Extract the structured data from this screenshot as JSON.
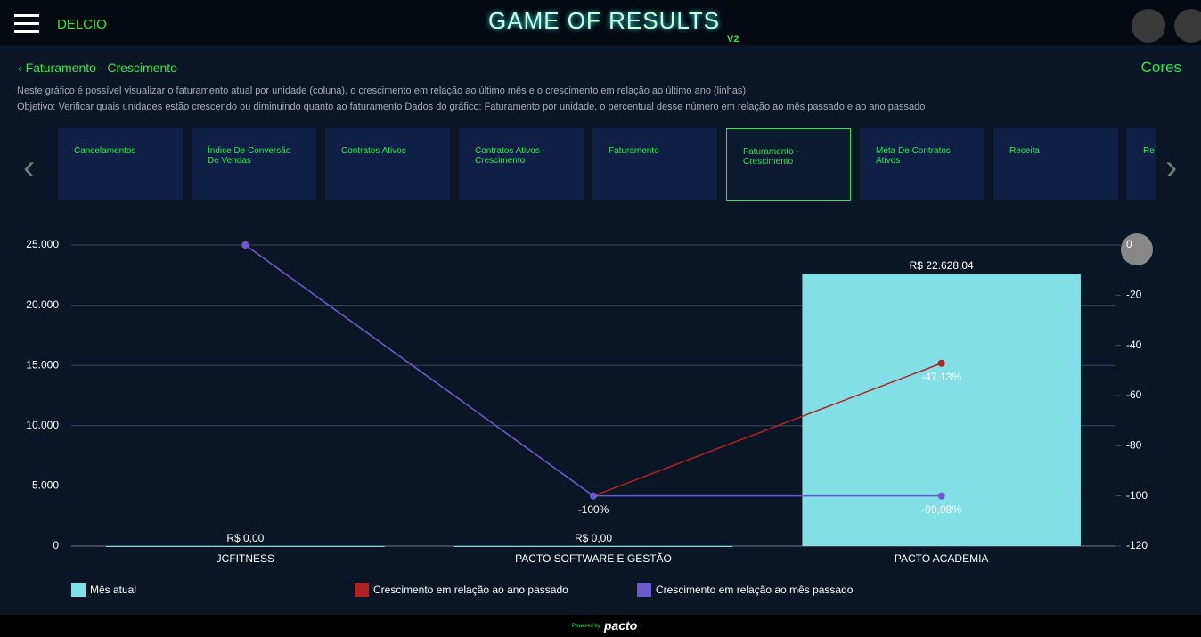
{
  "header": {
    "user": "DELCIO",
    "logo": "GAME OF RESULTS",
    "version": "V2"
  },
  "page": {
    "title": "Faturamento - Crescimento",
    "action": "Cores",
    "description": [
      "Neste gráfico é possível visualizar o faturamento atual por unidade (coluna), o crescimento em relação ao último mês e o crescimento em relação ao último ano (linhas)",
      "Objetivo: Verificar quais unidades estão crescendo ou diminuindo quanto ao faturamento Dados do gráfico: Faturamento por unidade, o percentual desse número em relação ao mês passado e ao ano passado"
    ]
  },
  "tabs": [
    "Cancelamentos",
    "Índice De Conversão De Vendas",
    "Contratos Ativos",
    "Contratos Ativos - Crescimento",
    "Faturamento",
    "Faturamento - Crescimento",
    "Meta De Contratos Ativos",
    "Receita",
    "Re"
  ],
  "chart_data": {
    "type": "bar",
    "categories": [
      "JCFITNESS",
      "PACTO SOFTWARE E GESTÃO",
      "PACTO ACADEMIA"
    ],
    "series": [
      {
        "name": "Mês atual",
        "type": "bar",
        "color": "#82dfe6",
        "values": [
          0,
          0,
          22628.04
        ],
        "value_labels": [
          "R$ 0,00",
          "R$ 0,00",
          "R$ 22.628,04"
        ]
      },
      {
        "name": "Crescimento em relação ao ano passado",
        "type": "line",
        "axis": "y2",
        "color": "#b22222",
        "values": [
          0,
          -100,
          -47.13
        ],
        "value_labels": [
          null,
          "-100%",
          "-47,13%"
        ]
      },
      {
        "name": "Crescimento em relação ao mês passado",
        "type": "line",
        "axis": "y2",
        "color": "#6a5acd",
        "values": [
          0,
          -100,
          -99.98
        ],
        "value_labels": [
          null,
          null,
          "-99,98%"
        ]
      }
    ],
    "ylim": [
      0,
      25000
    ],
    "yticks": [
      0,
      {
        "value": 5000,
        "label": "5.000"
      },
      {
        "value": 10000,
        "label": "10.000"
      },
      {
        "value": 15000,
        "label": "15.000"
      },
      {
        "value": 20000,
        "label": "20.000"
      },
      {
        "value": 25000,
        "label": "25.000"
      }
    ],
    "y2lim": [
      -120,
      0
    ],
    "y2ticks": [
      -120,
      -100,
      -80,
      -60,
      -40,
      -20,
      0
    ],
    "grid": true,
    "legend": "bottom"
  },
  "footer": {
    "powered": "Powered by",
    "brand": "pacto"
  }
}
